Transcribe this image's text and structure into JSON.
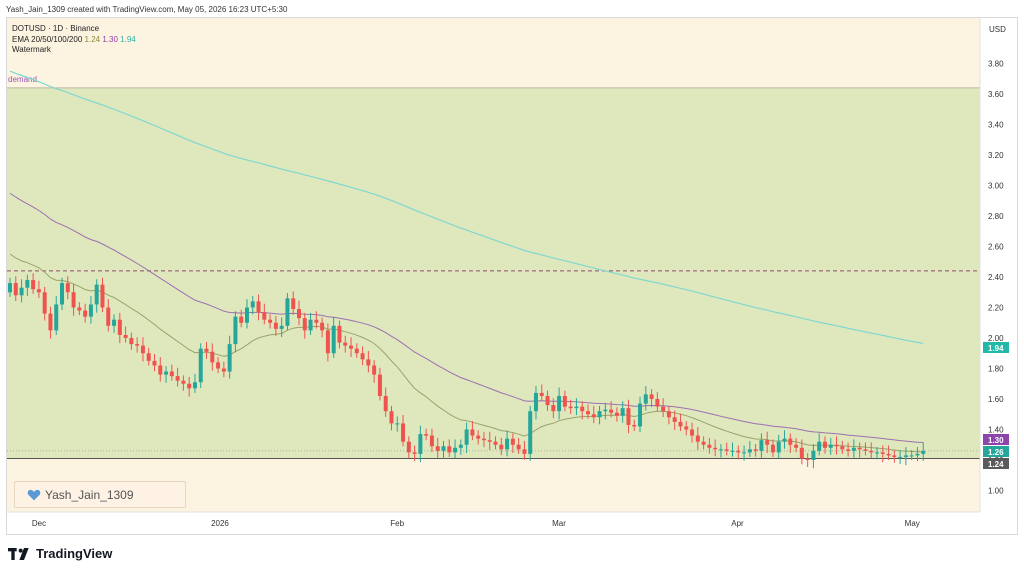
{
  "header": {
    "credit": "Yash_Jain_1309 created with TradingView.com, May 05, 2026 16:23 UTC+5:30"
  },
  "legend": {
    "symbol": "DOTUSD · 1D · Binance",
    "ema_label": "EMA 20/50/100/200",
    "ema_values": [
      "1.24",
      "1.30",
      "1.94"
    ],
    "watermark_label": "Watermark"
  },
  "watermark_text": "Yash_Jain_1309",
  "footer": {
    "brand": "TradingView"
  },
  "colors": {
    "up": "#26a69a",
    "down": "#ef5350",
    "zone": "#dfe8bd",
    "ema_fast": "#9aa36a",
    "ema_mid": "#9c6fb0",
    "ema_slow": "#7fd8cf"
  },
  "chart_data": {
    "type": "candlestick",
    "currency": "USD",
    "y_ticks": [
      "1.00",
      "1.20",
      "1.40",
      "1.60",
      "1.80",
      "2.00",
      "2.20",
      "2.40",
      "2.60",
      "2.80",
      "3.00",
      "3.20",
      "3.40",
      "3.60",
      "3.80"
    ],
    "ylim": [
      1.0,
      3.8
    ],
    "x_labels": [
      {
        "label": "Dec",
        "index": 5
      },
      {
        "label": "2026",
        "index": 36
      },
      {
        "label": "Feb",
        "index": 67
      },
      {
        "label": "Mar",
        "index": 95
      },
      {
        "label": "Apr",
        "index": 126
      },
      {
        "label": "May",
        "index": 156
      }
    ],
    "zone": {
      "label": "demand",
      "top": 3.64,
      "bottom": 1.21
    },
    "dashed_level": 2.44,
    "grey_level": 1.26,
    "price_badges": [
      {
        "value": "1.94",
        "color": "#22b8a8"
      },
      {
        "value": "1.30",
        "color": "#8e44ad"
      },
      {
        "value": "1.26",
        "color": "#26a69a"
      },
      {
        "value": "1.24",
        "color": "#5a5a5a"
      }
    ],
    "closes": [
      2.36,
      2.28,
      2.33,
      2.38,
      2.32,
      2.3,
      2.16,
      2.05,
      2.22,
      2.36,
      2.3,
      2.2,
      2.18,
      2.14,
      2.22,
      2.35,
      2.2,
      2.08,
      2.12,
      2.02,
      2.0,
      1.96,
      1.95,
      1.9,
      1.85,
      1.82,
      1.76,
      1.78,
      1.75,
      1.72,
      1.7,
      1.67,
      1.71,
      1.93,
      1.91,
      1.84,
      1.8,
      1.78,
      1.96,
      2.14,
      2.1,
      2.2,
      2.24,
      2.17,
      2.12,
      2.1,
      2.06,
      2.08,
      2.26,
      2.19,
      2.13,
      2.05,
      2.12,
      2.1,
      2.05,
      1.9,
      2.08,
      1.97,
      1.95,
      1.93,
      1.9,
      1.86,
      1.82,
      1.76,
      1.62,
      1.52,
      1.44,
      1.44,
      1.32,
      1.25,
      1.24,
      1.37,
      1.36,
      1.29,
      1.26,
      1.29,
      1.25,
      1.28,
      1.3,
      1.4,
      1.36,
      1.34,
      1.33,
      1.32,
      1.3,
      1.27,
      1.34,
      1.3,
      1.27,
      1.24,
      1.52,
      1.64,
      1.62,
      1.56,
      1.52,
      1.62,
      1.55,
      1.54,
      1.55,
      1.52,
      1.5,
      1.48,
      1.52,
      1.53,
      1.51,
      1.49,
      1.54,
      1.43,
      1.42,
      1.57,
      1.63,
      1.6,
      1.55,
      1.52,
      1.48,
      1.45,
      1.42,
      1.4,
      1.36,
      1.32,
      1.3,
      1.28,
      1.27,
      1.27,
      1.26,
      1.26,
      1.25,
      1.25,
      1.27,
      1.26,
      1.33,
      1.3,
      1.25,
      1.32,
      1.34,
      1.3,
      1.28,
      1.21,
      1.2,
      1.26,
      1.32,
      1.28,
      1.3,
      1.29,
      1.27,
      1.26,
      1.28,
      1.27,
      1.26,
      1.25,
      1.25,
      1.24,
      1.23,
      1.22,
      1.22,
      1.23,
      1.23,
      1.24,
      1.26
    ]
  }
}
